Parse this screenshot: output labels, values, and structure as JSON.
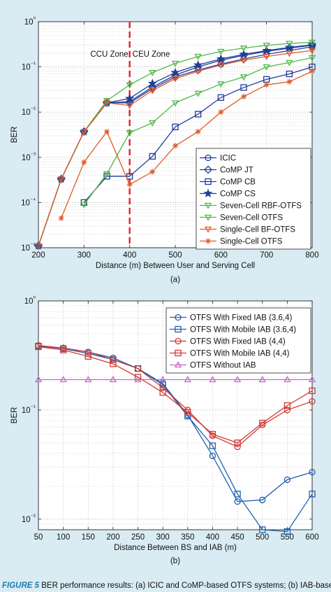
{
  "chart_data": [
    {
      "type": "line",
      "panel_label": "(a)",
      "xlabel": "Distance (m) Between User and Serving Cell",
      "ylabel": "BER",
      "x_ticks": [
        200,
        300,
        400,
        500,
        600,
        700,
        800
      ],
      "xlim": [
        200,
        800
      ],
      "ylim": [
        1e-05,
        1
      ],
      "y_scale": "log",
      "y_tick_labels": [
        "10⁻⁵",
        "10⁻⁴",
        "10⁻³",
        "10⁻²",
        "10⁻¹",
        "10⁰"
      ],
      "grid": true,
      "legend_position": "bottom-right",
      "zone_divider_x": 400,
      "zone_labels": [
        "CCU Zone",
        "CEU Zone"
      ],
      "series": [
        {
          "name": "ICIC",
          "color": "#1f3d99",
          "marker": "circle",
          "x": [
            200,
            250,
            300,
            350,
            400,
            450,
            500,
            550,
            600,
            650,
            700,
            750,
            800
          ],
          "y": [
            1.1e-05,
            0.00033,
            0.0037,
            0.016,
            0.016,
            0.033,
            0.06,
            0.085,
            0.115,
            0.15,
            0.19,
            0.23,
            0.28
          ]
        },
        {
          "name": "CoMP JT",
          "color": "#1f3d99",
          "marker": "diamond",
          "x": [
            200,
            250,
            300,
            350,
            400,
            450,
            500,
            550,
            600,
            650,
            700,
            750,
            800
          ],
          "y": [
            1.1e-05,
            0.00033,
            0.0037,
            0.016,
            0.017,
            0.036,
            0.066,
            0.1,
            0.14,
            0.18,
            0.22,
            0.26,
            0.3
          ]
        },
        {
          "name": "CoMP CB",
          "color": "#1f3d99",
          "marker": "square",
          "x": [
            300,
            350,
            400,
            450,
            500,
            550,
            600,
            650,
            700,
            750,
            800
          ],
          "y": [
            0.0001,
            0.00038,
            0.00038,
            0.00105,
            0.0047,
            0.009,
            0.021,
            0.035,
            0.053,
            0.07,
            0.1
          ]
        },
        {
          "name": "CoMP CS",
          "color": "#1f3d99",
          "marker": "star",
          "x": [
            200,
            250,
            300,
            350,
            400,
            450,
            500,
            550,
            600,
            650,
            700,
            750,
            800
          ],
          "y": [
            1.1e-05,
            0.00033,
            0.0037,
            0.016,
            0.02,
            0.043,
            0.075,
            0.11,
            0.15,
            0.19,
            0.23,
            0.27,
            0.31
          ]
        },
        {
          "name": "Seven-Cell RBF-OTFS",
          "color": "#4fb848",
          "marker": "triangle-down",
          "x": [
            200,
            250,
            300,
            350,
            400,
            450,
            500,
            550,
            600,
            650,
            700,
            750,
            800
          ],
          "y": [
            1.1e-05,
            0.00033,
            0.0037,
            0.018,
            0.04,
            0.075,
            0.12,
            0.17,
            0.22,
            0.26,
            0.3,
            0.33,
            0.35
          ]
        },
        {
          "name": "Seven-Cell OTFS",
          "color": "#4fb848",
          "marker": "triangle-down",
          "x": [
            300,
            350,
            400,
            450,
            500,
            550,
            600,
            650,
            700,
            750,
            800
          ],
          "y": [
            9e-05,
            0.00043,
            0.0035,
            0.0058,
            0.016,
            0.026,
            0.042,
            0.06,
            0.1,
            0.125,
            0.16
          ]
        },
        {
          "name": "Single-Cell BF-OTFS",
          "color": "#e05a28",
          "marker": "triangle-down",
          "x": [
            200,
            250,
            300,
            350,
            400,
            450,
            500,
            550,
            600,
            650,
            700,
            750,
            800
          ],
          "y": [
            1.1e-05,
            0.00033,
            0.0037,
            0.016,
            0.014,
            0.03,
            0.055,
            0.08,
            0.11,
            0.14,
            0.17,
            0.2,
            0.23
          ]
        },
        {
          "name": "Single-Cell OTFS",
          "color": "#e05a28",
          "marker": "asterisk",
          "x": [
            250,
            300,
            350,
            400,
            450,
            500,
            550,
            600,
            650,
            700,
            750,
            800
          ],
          "y": [
            4.5e-05,
            0.00078,
            0.0037,
            0.00025,
            0.00048,
            0.0018,
            0.0037,
            0.01,
            0.022,
            0.04,
            0.047,
            0.08
          ]
        }
      ]
    },
    {
      "type": "line",
      "panel_label": "(b)",
      "xlabel": "Distance Between BS and IAB (m)",
      "ylabel": "BER",
      "x_ticks": [
        50,
        100,
        150,
        200,
        250,
        300,
        350,
        400,
        450,
        500,
        550,
        600
      ],
      "xlim": [
        50,
        600
      ],
      "ylim": [
        0.008,
        1
      ],
      "y_scale": "log",
      "y_tick_labels": [
        "10⁰",
        "10⁻¹",
        "10⁻²"
      ],
      "grid": true,
      "legend_position": "top-right",
      "series": [
        {
          "name": "OTFS With Fixed IAB (3.6,4)",
          "color": "#1f5fb0",
          "marker": "circle",
          "x": [
            50,
            100,
            150,
            200,
            250,
            300,
            350,
            400,
            450,
            500,
            550,
            600
          ],
          "y": [
            0.39,
            0.37,
            0.34,
            0.3,
            0.24,
            0.175,
            0.09,
            0.038,
            0.0145,
            0.015,
            0.023,
            0.027
          ]
        },
        {
          "name": "OTFS With Mobile IAB (3.6,4)",
          "color": "#1f5fb0",
          "marker": "square",
          "x": [
            50,
            100,
            150,
            200,
            250,
            300,
            350,
            400,
            450,
            500,
            550,
            600
          ],
          "y": [
            0.385,
            0.365,
            0.33,
            0.29,
            0.24,
            0.17,
            0.088,
            0.047,
            0.017,
            0.008,
            0.0077,
            0.017
          ]
        },
        {
          "name": "OTFS With Fixed IAB (4,4)",
          "color": "#d23a33",
          "marker": "circle",
          "x": [
            50,
            100,
            150,
            200,
            250,
            300,
            350,
            400,
            450,
            500,
            550,
            600
          ],
          "y": [
            0.39,
            0.37,
            0.34,
            0.29,
            0.24,
            0.16,
            0.1,
            0.058,
            0.046,
            0.073,
            0.1,
            0.12
          ]
        },
        {
          "name": "OTFS With Mobile IAB (4,4)",
          "color": "#d23a33",
          "marker": "square",
          "x": [
            50,
            100,
            150,
            200,
            250,
            300,
            350,
            400,
            450,
            500,
            550,
            600
          ],
          "y": [
            0.38,
            0.355,
            0.31,
            0.265,
            0.2,
            0.145,
            0.095,
            0.06,
            0.05,
            0.076,
            0.11,
            0.15
          ]
        },
        {
          "name": "OTFS Without IAB",
          "color": "#c266c8",
          "marker": "triangle-up",
          "x": [
            50,
            100,
            150,
            200,
            250,
            300,
            350,
            400,
            450,
            500,
            550,
            600
          ],
          "y": [
            0.19,
            0.19,
            0.19,
            0.19,
            0.19,
            0.19,
            0.19,
            0.19,
            0.19,
            0.19,
            0.19,
            0.19
          ]
        }
      ]
    }
  ],
  "caption": {
    "figure_label": "FIGURE 5",
    "text": " BER performance results: (a) ICIC and CoMP-based OTFS systems; (b) IAB-based"
  }
}
